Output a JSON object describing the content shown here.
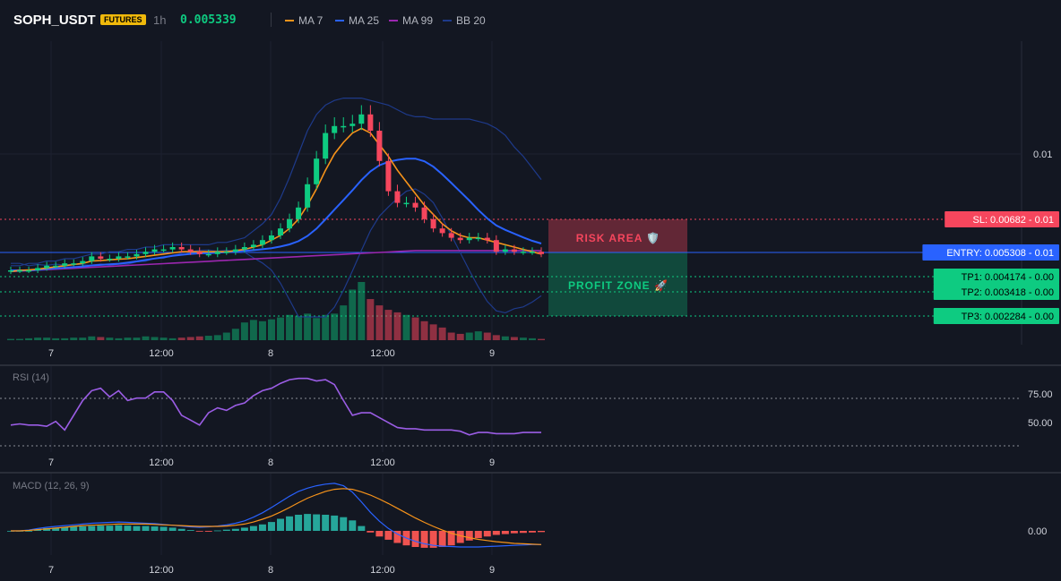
{
  "header": {
    "symbol": "SOPH_USDT",
    "badge": "FUTURES",
    "timeframe": "1h",
    "price": "0.005339",
    "legend": [
      {
        "label": "MA 7",
        "color": "#f7931a"
      },
      {
        "label": "MA 25",
        "color": "#2962ff"
      },
      {
        "label": "MA 99",
        "color": "#9c27b0"
      },
      {
        "label": "BB 20",
        "color": "#1e3a8a"
      }
    ]
  },
  "colors": {
    "up": "#0ecb81",
    "down": "#f6465d",
    "sl": "#f6465d",
    "entry": "#2962ff",
    "tp": "#0ecb81"
  },
  "chart_data": [
    {
      "type": "candlestick",
      "title": "SOPH_USDT 1h",
      "x_ticks": [
        "7",
        "12:00",
        "8",
        "12:00",
        "9"
      ],
      "y_ticks": [
        "0.01"
      ],
      "zones": [
        {
          "label": "RISK AREA 🛡️",
          "from": 0.005308,
          "to": 0.00682
        },
        {
          "label": "PROFIT ZONE 🚀",
          "from": 0.002284,
          "to": 0.005308
        }
      ],
      "levels": [
        {
          "label": "SL: 0.00682",
          "price": 0.00682,
          "tag": "- 0.01"
        },
        {
          "label": "ENTRY: 0.005308",
          "price": 0.005308,
          "tag": "- 0.01"
        },
        {
          "label": "TP1: 0.004174",
          "price": 0.004174,
          "tag": "- 0.00"
        },
        {
          "label": "TP2: 0.003418",
          "price": 0.003418,
          "tag": "- 0.00"
        },
        {
          "label": "TP3: 0.002284",
          "price": 0.002284,
          "tag": "- 0.00"
        }
      ],
      "ohlc_close": [
        0.0046,
        0.0046,
        0.0046,
        0.0047,
        0.0048,
        0.0048,
        0.0049,
        0.0049,
        0.005,
        0.0052,
        0.0051,
        0.0051,
        0.0052,
        0.0052,
        0.0053,
        0.0054,
        0.0055,
        0.0055,
        0.0056,
        0.0055,
        0.0054,
        0.0053,
        0.0053,
        0.0054,
        0.0054,
        0.0055,
        0.0056,
        0.0057,
        0.0059,
        0.0061,
        0.0064,
        0.0068,
        0.0073,
        0.0083,
        0.0094,
        0.0105,
        0.0108,
        0.0108,
        0.0109,
        0.0113,
        0.0106,
        0.0093,
        0.008,
        0.0075,
        0.0075,
        0.0073,
        0.0068,
        0.0064,
        0.0062,
        0.006,
        0.0059,
        0.006,
        0.006,
        0.0059,
        0.0054,
        0.0055,
        0.0054,
        0.0054,
        0.0054,
        0.0053
      ],
      "volume": [
        2,
        2,
        3,
        4,
        4,
        3,
        3,
        4,
        4,
        6,
        5,
        4,
        3,
        4,
        4,
        6,
        5,
        4,
        3,
        4,
        5,
        6,
        7,
        8,
        12,
        18,
        28,
        32,
        30,
        33,
        36,
        40,
        38,
        42,
        35,
        40,
        42,
        55,
        80,
        92,
        65,
        55,
        48,
        44,
        40,
        36,
        30,
        25,
        20,
        12,
        10,
        12,
        14,
        12,
        8,
        6,
        5,
        4,
        3,
        2
      ],
      "ma7": [
        0.00455,
        0.0046,
        0.00462,
        0.00465,
        0.0047,
        0.00475,
        0.0048,
        0.00485,
        0.0049,
        0.005,
        0.00502,
        0.00505,
        0.00508,
        0.0051,
        0.00515,
        0.0052,
        0.00525,
        0.0053,
        0.00535,
        0.0054,
        0.0054,
        0.0054,
        0.0054,
        0.0054,
        0.0054,
        0.00545,
        0.0055,
        0.0056,
        0.0057,
        0.0059,
        0.0061,
        0.0064,
        0.0068,
        0.0074,
        0.0081,
        0.0089,
        0.0096,
        0.0101,
        0.0105,
        0.0107,
        0.0105,
        0.01,
        0.0095,
        0.0089,
        0.0084,
        0.0079,
        0.0074,
        0.007,
        0.0066,
        0.0063,
        0.0061,
        0.006,
        0.006,
        0.0059,
        0.0058,
        0.0057,
        0.0056,
        0.0055,
        0.0054,
        0.0053
      ],
      "bb_upper": [
        0.0048,
        0.0048,
        0.0049,
        0.0049,
        0.005,
        0.005,
        0.0051,
        0.0051,
        0.0052,
        0.0053,
        0.0053,
        0.0054,
        0.0054,
        0.0055,
        0.0055,
        0.0056,
        0.0056,
        0.0057,
        0.0057,
        0.0057,
        0.0057,
        0.0057,
        0.0057,
        0.0058,
        0.0058,
        0.0059,
        0.006,
        0.0063,
        0.0066,
        0.007,
        0.0077,
        0.0086,
        0.0096,
        0.0106,
        0.0113,
        0.0117,
        0.0119,
        0.012,
        0.012,
        0.012,
        0.0119,
        0.0118,
        0.0117,
        0.0115,
        0.0113,
        0.0112,
        0.0112,
        0.0111,
        0.0111,
        0.0111,
        0.0111,
        0.0111,
        0.011,
        0.0109,
        0.0107,
        0.0104,
        0.0099,
        0.0095,
        0.009,
        0.0085
      ]
    },
    {
      "type": "line",
      "title": "RSI (14)",
      "x_ticks": [
        "7",
        "12:00",
        "8",
        "12:00",
        "9"
      ],
      "y_ticks": [
        "75.00",
        "50.00"
      ],
      "ylim": [
        30,
        100
      ],
      "values": [
        52,
        53,
        52,
        52,
        51,
        55,
        48,
        60,
        72,
        80,
        82,
        75,
        80,
        72,
        74,
        74,
        79,
        79,
        72,
        60,
        56,
        52,
        62,
        66,
        64,
        68,
        70,
        76,
        80,
        82,
        86,
        89,
        90,
        90,
        88,
        89,
        85,
        72,
        60,
        62,
        62,
        58,
        54,
        50,
        49,
        49,
        48,
        48,
        48,
        48,
        47,
        44,
        46,
        46,
        45,
        45,
        45,
        46,
        46,
        46
      ]
    },
    {
      "type": "bar+line",
      "title": "MACD (12, 26, 9)",
      "x_ticks": [
        "7",
        "12:00",
        "8",
        "12:00",
        "9"
      ],
      "y_ticks": [
        "0.00"
      ],
      "hist": [
        0,
        0,
        0,
        0.5,
        0.7,
        0.8,
        0.9,
        1,
        1.1,
        1.2,
        1.3,
        1.3,
        1.4,
        1.3,
        1.2,
        1.2,
        1.1,
        1,
        0.8,
        0.5,
        0.2,
        -0.1,
        -0.2,
        0.1,
        0.3,
        0.5,
        0.8,
        1.2,
        1.6,
        2.2,
        3,
        3.6,
        4,
        4.2,
        4.1,
        4,
        3.8,
        3.4,
        2.6,
        1.2,
        -0.4,
        -1.4,
        -2.2,
        -3,
        -3.6,
        -4,
        -4.2,
        -4.2,
        -4,
        -3.6,
        -3,
        -2.4,
        -1.8,
        -1.4,
        -1,
        -0.8,
        -0.6,
        -0.5,
        -0.4,
        -0.3
      ],
      "macd": [
        0,
        0,
        0.2,
        0.6,
        0.9,
        1.1,
        1.3,
        1.5,
        1.7,
        1.9,
        2,
        2.1,
        2.2,
        2.1,
        2,
        1.9,
        1.8,
        1.6,
        1.4,
        1.2,
        1,
        0.9,
        1,
        1.2,
        1.5,
        1.9,
        2.5,
        3.4,
        4.5,
        5.8,
        7.2,
        8.6,
        9.8,
        10.6,
        11.2,
        11.6,
        11.8,
        11.2,
        9.6,
        7.2,
        4.6,
        2.4,
        0.6,
        -0.8,
        -1.8,
        -2.6,
        -3.2,
        -3.6,
        -3.8,
        -3.9,
        -4,
        -4,
        -4,
        -3.9,
        -3.8,
        -3.7,
        -3.6,
        -3.5,
        -3.4,
        -3.4
      ],
      "signal": [
        0,
        0,
        0.1,
        0.3,
        0.5,
        0.7,
        0.9,
        1.1,
        1.3,
        1.4,
        1.5,
        1.6,
        1.7,
        1.7,
        1.7,
        1.7,
        1.6,
        1.5,
        1.4,
        1.3,
        1.2,
        1.1,
        1.1,
        1.1,
        1.2,
        1.4,
        1.7,
        2.2,
        2.9,
        3.7,
        4.7,
        5.8,
        7,
        8.1,
        9,
        9.8,
        10.3,
        10.5,
        10.3,
        9.7,
        8.9,
        7.9,
        6.8,
        5.6,
        4.4,
        3.2,
        2.1,
        1.1,
        0.2,
        -0.6,
        -1.2,
        -1.7,
        -2.1,
        -2.4,
        -2.7,
        -2.9,
        -3.1,
        -3.2,
        -3.3,
        -3.4
      ]
    }
  ]
}
